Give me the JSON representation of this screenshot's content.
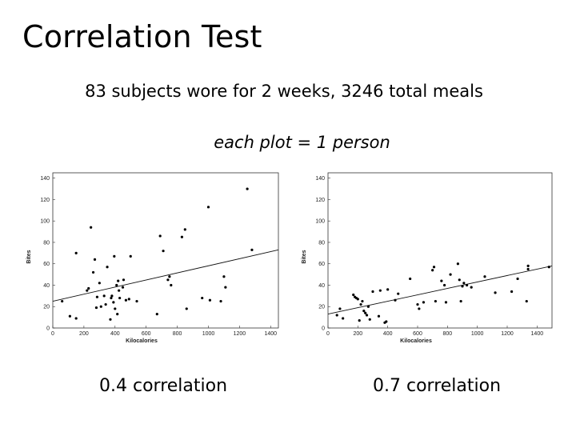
{
  "slide": {
    "title": "Correlation Test",
    "subtitle": "83 subjects wore for 2 weeks, 3246 total meals",
    "note": "each plot = 1 person"
  },
  "chart_data": [
    {
      "type": "scatter",
      "caption": "0.4 correlation",
      "xlabel": "Kilocalories",
      "ylabel": "Bites",
      "xlim": [
        0,
        1450
      ],
      "ylim": [
        0,
        145
      ],
      "xticks": [
        0,
        200,
        400,
        600,
        800,
        1000,
        1200,
        1400
      ],
      "yticks": [
        0,
        20,
        40,
        60,
        80,
        100,
        120,
        140
      ],
      "trendline": {
        "x": [
          0,
          1450
        ],
        "y": [
          25,
          73
        ]
      },
      "points": [
        {
          "x": 60,
          "y": 25
        },
        {
          "x": 110,
          "y": 11
        },
        {
          "x": 150,
          "y": 9
        },
        {
          "x": 150,
          "y": 70
        },
        {
          "x": 220,
          "y": 35
        },
        {
          "x": 230,
          "y": 37
        },
        {
          "x": 245,
          "y": 94
        },
        {
          "x": 260,
          "y": 52
        },
        {
          "x": 270,
          "y": 64
        },
        {
          "x": 280,
          "y": 19
        },
        {
          "x": 285,
          "y": 29
        },
        {
          "x": 300,
          "y": 42
        },
        {
          "x": 310,
          "y": 20
        },
        {
          "x": 330,
          "y": 30
        },
        {
          "x": 340,
          "y": 22
        },
        {
          "x": 350,
          "y": 57
        },
        {
          "x": 370,
          "y": 8
        },
        {
          "x": 375,
          "y": 28
        },
        {
          "x": 380,
          "y": 30
        },
        {
          "x": 390,
          "y": 24
        },
        {
          "x": 395,
          "y": 67
        },
        {
          "x": 400,
          "y": 18
        },
        {
          "x": 410,
          "y": 40
        },
        {
          "x": 415,
          "y": 13
        },
        {
          "x": 420,
          "y": 44
        },
        {
          "x": 425,
          "y": 35
        },
        {
          "x": 430,
          "y": 28
        },
        {
          "x": 450,
          "y": 38
        },
        {
          "x": 455,
          "y": 45
        },
        {
          "x": 470,
          "y": 26
        },
        {
          "x": 490,
          "y": 27
        },
        {
          "x": 500,
          "y": 67
        },
        {
          "x": 540,
          "y": 25
        },
        {
          "x": 670,
          "y": 13
        },
        {
          "x": 690,
          "y": 86
        },
        {
          "x": 710,
          "y": 72
        },
        {
          "x": 740,
          "y": 45
        },
        {
          "x": 750,
          "y": 48
        },
        {
          "x": 760,
          "y": 40
        },
        {
          "x": 830,
          "y": 85
        },
        {
          "x": 850,
          "y": 92
        },
        {
          "x": 860,
          "y": 18
        },
        {
          "x": 960,
          "y": 28
        },
        {
          "x": 1000,
          "y": 113
        },
        {
          "x": 1010,
          "y": 26
        },
        {
          "x": 1080,
          "y": 25
        },
        {
          "x": 1100,
          "y": 48
        },
        {
          "x": 1110,
          "y": 38
        },
        {
          "x": 1250,
          "y": 130
        },
        {
          "x": 1280,
          "y": 73
        }
      ]
    },
    {
      "type": "scatter",
      "caption": "0.7 correlation",
      "xlabel": "Kilocalories",
      "ylabel": "Bites",
      "xlim": [
        0,
        1500
      ],
      "ylim": [
        0,
        145
      ],
      "xticks": [
        0,
        200,
        400,
        600,
        800,
        1000,
        1200,
        1400
      ],
      "yticks": [
        0,
        20,
        40,
        60,
        80,
        100,
        120,
        140
      ],
      "trendline": {
        "x": [
          0,
          1500
        ],
        "y": [
          13,
          58
        ]
      },
      "points": [
        {
          "x": 60,
          "y": 12
        },
        {
          "x": 80,
          "y": 18
        },
        {
          "x": 100,
          "y": 9
        },
        {
          "x": 170,
          "y": 31
        },
        {
          "x": 180,
          "y": 29
        },
        {
          "x": 190,
          "y": 28
        },
        {
          "x": 200,
          "y": 27
        },
        {
          "x": 210,
          "y": 7
        },
        {
          "x": 220,
          "y": 22
        },
        {
          "x": 230,
          "y": 25
        },
        {
          "x": 240,
          "y": 16
        },
        {
          "x": 250,
          "y": 14
        },
        {
          "x": 260,
          "y": 12
        },
        {
          "x": 270,
          "y": 20
        },
        {
          "x": 280,
          "y": 8
        },
        {
          "x": 300,
          "y": 34
        },
        {
          "x": 340,
          "y": 11
        },
        {
          "x": 350,
          "y": 35
        },
        {
          "x": 380,
          "y": 5
        },
        {
          "x": 390,
          "y": 6
        },
        {
          "x": 400,
          "y": 36
        },
        {
          "x": 450,
          "y": 26
        },
        {
          "x": 470,
          "y": 32
        },
        {
          "x": 550,
          "y": 46
        },
        {
          "x": 600,
          "y": 22
        },
        {
          "x": 610,
          "y": 18
        },
        {
          "x": 640,
          "y": 24
        },
        {
          "x": 700,
          "y": 54
        },
        {
          "x": 710,
          "y": 57
        },
        {
          "x": 720,
          "y": 25
        },
        {
          "x": 760,
          "y": 44
        },
        {
          "x": 780,
          "y": 40
        },
        {
          "x": 790,
          "y": 24
        },
        {
          "x": 820,
          "y": 50
        },
        {
          "x": 870,
          "y": 60
        },
        {
          "x": 880,
          "y": 45
        },
        {
          "x": 890,
          "y": 25
        },
        {
          "x": 900,
          "y": 39
        },
        {
          "x": 910,
          "y": 42
        },
        {
          "x": 930,
          "y": 40
        },
        {
          "x": 960,
          "y": 38
        },
        {
          "x": 1050,
          "y": 48
        },
        {
          "x": 1120,
          "y": 33
        },
        {
          "x": 1230,
          "y": 34
        },
        {
          "x": 1270,
          "y": 46
        },
        {
          "x": 1330,
          "y": 25
        },
        {
          "x": 1340,
          "y": 55
        },
        {
          "x": 1340,
          "y": 58
        },
        {
          "x": 1480,
          "y": 57
        }
      ]
    }
  ]
}
